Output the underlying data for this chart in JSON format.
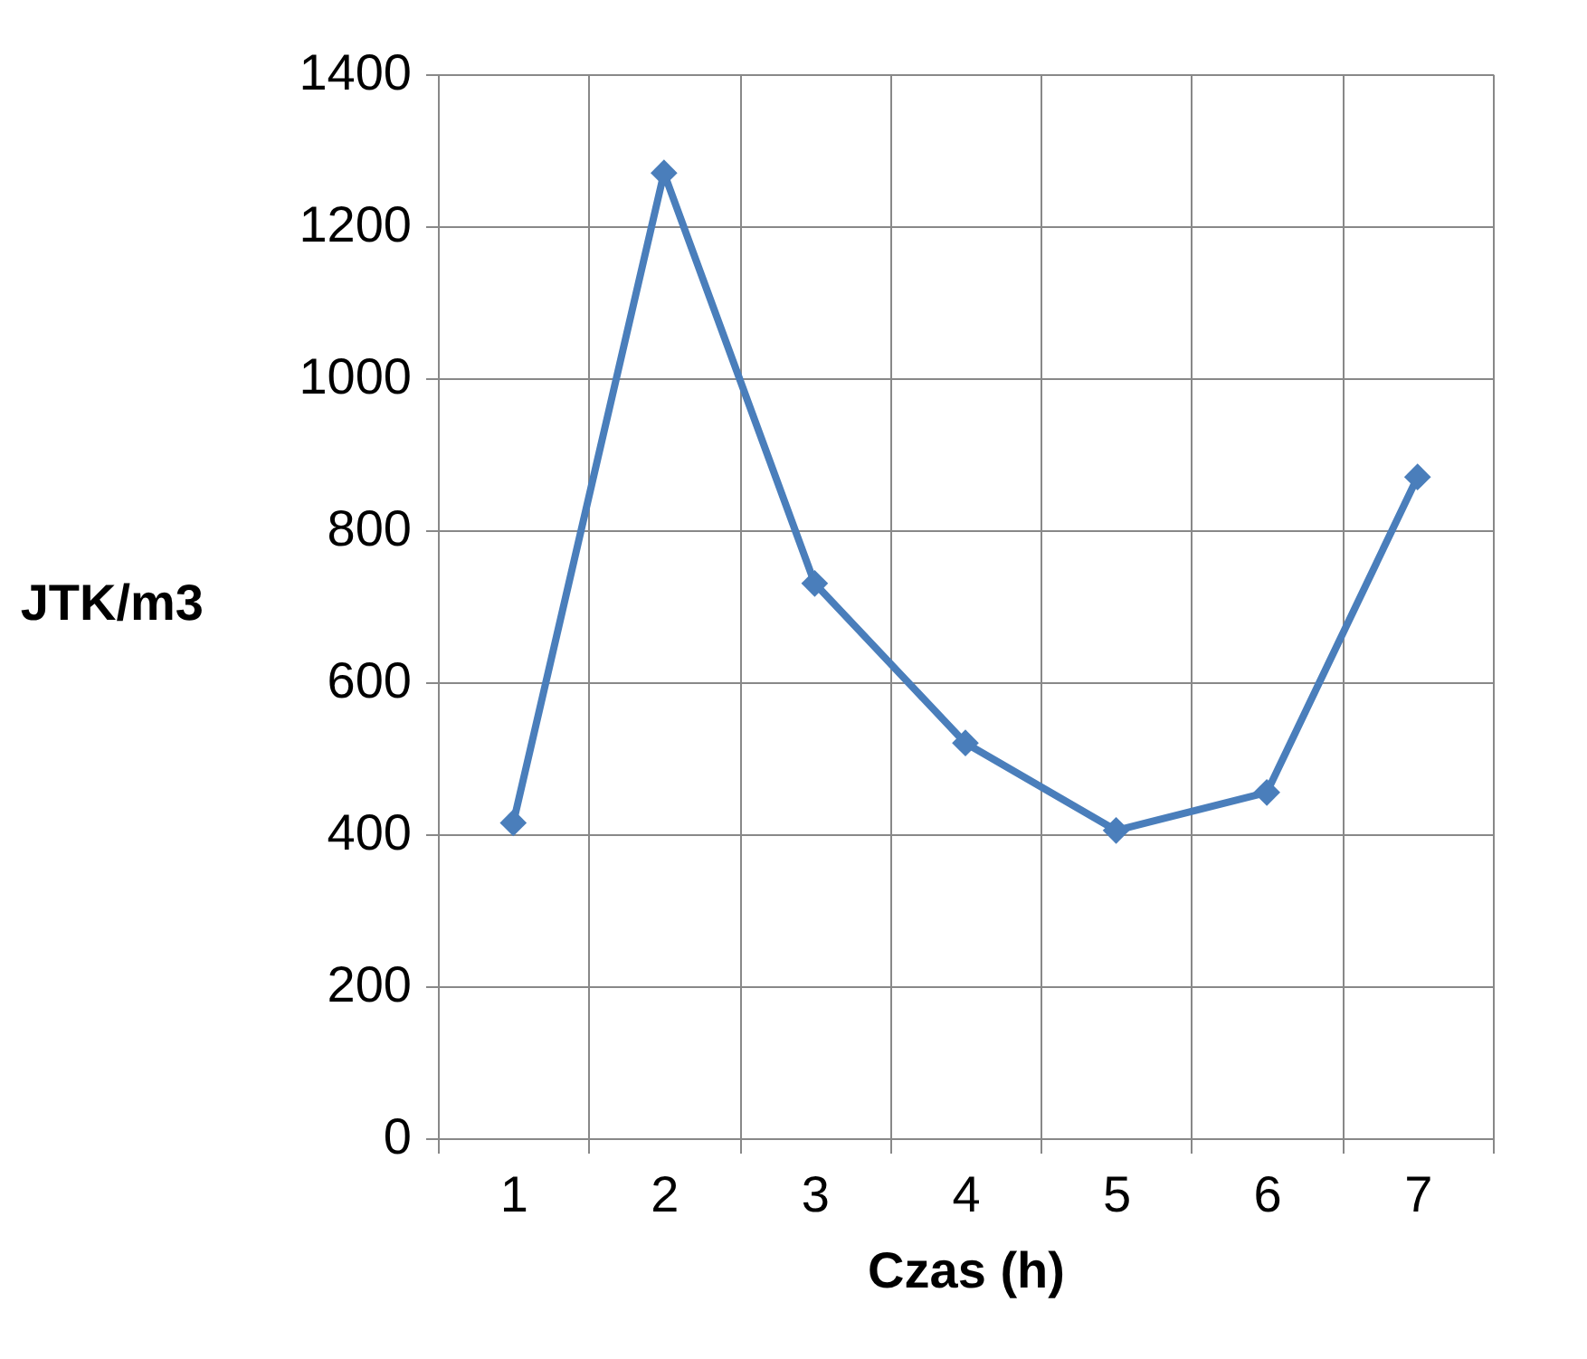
{
  "chart_data": {
    "type": "line",
    "xlabel": "Czas (h)",
    "ylabel": "JTK/m3",
    "categories": [
      "1",
      "2",
      "3",
      "4",
      "5",
      "6",
      "7"
    ],
    "series": [
      {
        "color": "#4a7ebb",
        "values": [
          415,
          1270,
          730,
          520,
          405,
          455,
          870
        ]
      }
    ],
    "ylim": [
      0,
      1400
    ],
    "yticks": [
      0,
      200,
      400,
      600,
      800,
      1000,
      1200,
      1400
    ],
    "grid": true,
    "marker": "diamond",
    "line_style": "solid"
  }
}
